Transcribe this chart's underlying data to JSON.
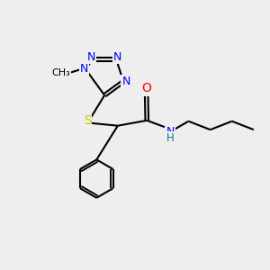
{
  "background_color": "#eeeeee",
  "bond_color": "#000000",
  "N_color": "#0000ff",
  "O_color": "#ff0000",
  "S_color": "#cccc00",
  "NH_color": "#008080",
  "C_color": "#000000",
  "line_width": 1.5,
  "dbo": 0.055,
  "figsize": [
    3.0,
    3.0
  ],
  "dpi": 100,
  "xlim": [
    0,
    10
  ],
  "ylim": [
    0,
    10
  ]
}
